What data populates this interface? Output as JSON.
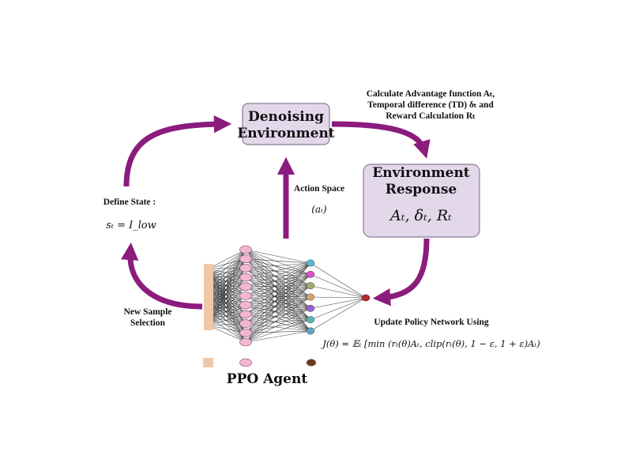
{
  "boxes": {
    "denoising": {
      "line1": "Denoising",
      "line2": "Environment"
    },
    "response": {
      "line1": "Environment",
      "line2": "Response",
      "formula": "Aₜ, δₜ, Rₜ"
    }
  },
  "labels": {
    "advantage": {
      "line1": "Calculate Advantage function Aₜ,",
      "line2": "Temporal difference (TD) δₜ and",
      "line3": "Reward Calculation Rₜ"
    },
    "action_space": {
      "line1": "Action Space",
      "line2": "(aₜ)"
    },
    "define_state": {
      "line1": "Define State :",
      "line2": "sₜ = I_low"
    },
    "new_sample": {
      "line1": "New Sample",
      "line2": "Selection"
    },
    "update_policy": {
      "line1": "Update Policy Network Using",
      "formula": "J(θ) = 𝔼ₜ [min (rₜ(θ)Aₜ, clip(rₜ(θ), 1 − ε, 1 + ε)Aₜ)"
    },
    "agent": "PPO Agent"
  },
  "colors": {
    "arrow": "#8b1c7e",
    "box_fill": "#e3d7ea",
    "box_stroke": "#8c7a98",
    "input_node": "#f0c8a8",
    "hidden_node": "#f2b6d4",
    "output_node": "#b22a2a",
    "legend_output": "#6b3a1f",
    "layer2_nodes": [
      "#5ab8d8",
      "#e050c8",
      "#a6a870",
      "#d6a46e",
      "#9a60d6",
      "#58b8b0",
      "#5aa8d0"
    ]
  },
  "network": {
    "input_count": 8,
    "hidden_count": 11,
    "layer2_count": 7,
    "output_count": 1
  }
}
